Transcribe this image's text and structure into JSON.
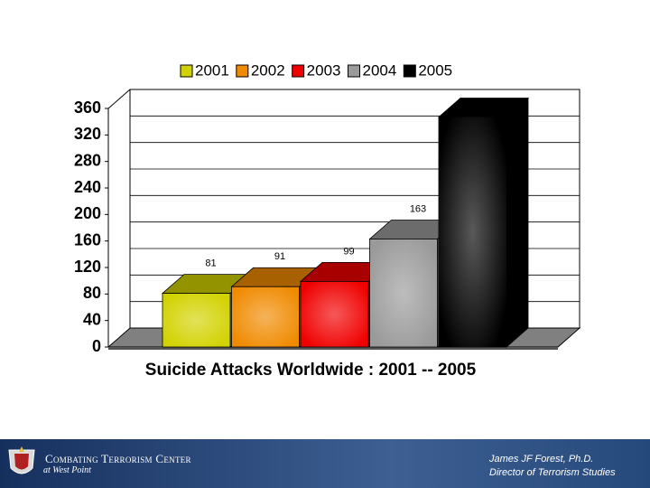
{
  "chart_data": {
    "type": "bar",
    "title": "Suicide Attacks Worldwide : 2001 -- 2005",
    "categories": [
      "2001",
      "2002",
      "2003",
      "2004",
      "2005"
    ],
    "values": [
      81,
      91,
      99,
      163,
      347
    ],
    "labeled": [
      true,
      true,
      true,
      true,
      false
    ],
    "colors": [
      "#d2d200",
      "#f08a00",
      "#f00000",
      "#9a9a9a",
      "#000000"
    ],
    "ylim": [
      0,
      360
    ],
    "yticks": [
      0,
      40,
      80,
      120,
      160,
      200,
      240,
      280,
      320,
      360
    ],
    "grid": true
  },
  "footer": {
    "org": "Combating Terrorism Center",
    "place": "at West Point",
    "author": "James JF Forest, Ph.D.",
    "role": "Director of Terrorism Studies"
  }
}
